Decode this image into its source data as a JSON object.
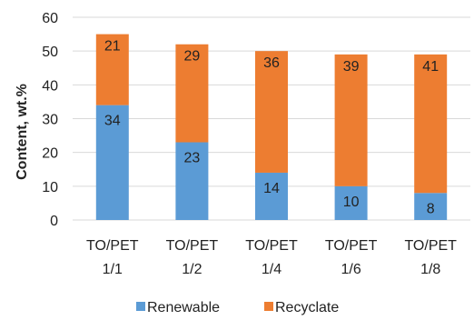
{
  "chart_data": {
    "type": "bar",
    "stacked": true,
    "categories": [
      {
        "line1": "TO/PET",
        "line2": "1/1"
      },
      {
        "line1": "TO/PET",
        "line2": "1/2"
      },
      {
        "line1": "TO/PET",
        "line2": "1/4"
      },
      {
        "line1": "TO/PET",
        "line2": "1/6"
      },
      {
        "line1": "TO/PET",
        "line2": "1/8"
      }
    ],
    "series": [
      {
        "name": "Renewable",
        "values": [
          34,
          23,
          14,
          10,
          8
        ],
        "color": "#5b9bd5"
      },
      {
        "name": "Recyclate",
        "values": [
          21,
          29,
          36,
          39,
          41
        ],
        "color": "#ed7d31"
      }
    ],
    "ylabel": "Content, wt.%",
    "xlabel": "",
    "ylim": [
      0,
      60
    ],
    "yticks": [
      0,
      10,
      20,
      30,
      40,
      50,
      60
    ],
    "grid": true,
    "legend_position": "bottom"
  }
}
